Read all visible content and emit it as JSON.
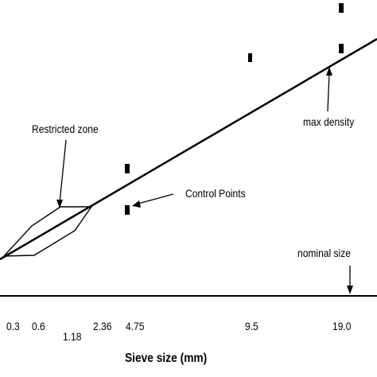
{
  "annotations": {
    "restricted_zone": "Restricted zone",
    "control_points": "Control Points",
    "max_density": "max density",
    "nominal_size": "nominal size"
  },
  "x_axis": {
    "title": "Sieve size (mm)",
    "ticks": [
      "0.3",
      "0.6",
      "1.18",
      "2.36",
      "4.75",
      "9.5",
      "19.0"
    ]
  }
}
